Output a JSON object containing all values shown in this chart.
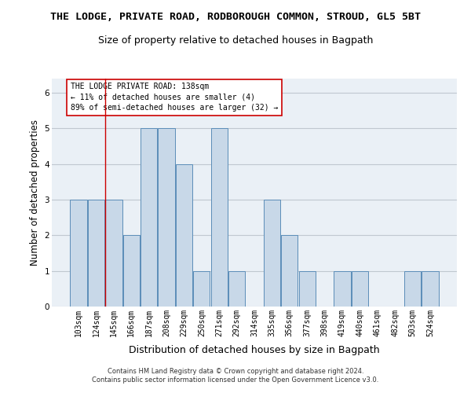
{
  "title1": "THE LODGE, PRIVATE ROAD, RODBOROUGH COMMON, STROUD, GL5 5BT",
  "title2": "Size of property relative to detached houses in Bagpath",
  "xlabel": "Distribution of detached houses by size in Bagpath",
  "ylabel": "Number of detached properties",
  "footnote": "Contains HM Land Registry data © Crown copyright and database right 2024.\nContains public sector information licensed under the Open Government Licence v3.0.",
  "categories": [
    "103sqm",
    "124sqm",
    "145sqm",
    "166sqm",
    "187sqm",
    "208sqm",
    "229sqm",
    "250sqm",
    "271sqm",
    "292sqm",
    "314sqm",
    "335sqm",
    "356sqm",
    "377sqm",
    "398sqm",
    "419sqm",
    "440sqm",
    "461sqm",
    "482sqm",
    "503sqm",
    "524sqm"
  ],
  "values": [
    3,
    3,
    3,
    2,
    5,
    5,
    4,
    1,
    5,
    1,
    0,
    3,
    2,
    1,
    0,
    1,
    1,
    0,
    0,
    1,
    1
  ],
  "bar_color": "#c8d8e8",
  "bar_edge_color": "#5b8db8",
  "grid_color": "#c0c8d0",
  "vline_x": 1.5,
  "vline_color": "#cc0000",
  "annotation_box_text": "THE LODGE PRIVATE ROAD: 138sqm\n← 11% of detached houses are smaller (4)\n89% of semi-detached houses are larger (32) →",
  "ylim": [
    0,
    6.4
  ],
  "yticks": [
    0,
    1,
    2,
    3,
    4,
    5,
    6
  ],
  "background_color": "#eaf0f6",
  "title1_fontsize": 9.5,
  "title2_fontsize": 9,
  "xlabel_fontsize": 9,
  "ylabel_fontsize": 8.5,
  "tick_fontsize": 7,
  "annotation_fontsize": 7,
  "footnote_fontsize": 6
}
